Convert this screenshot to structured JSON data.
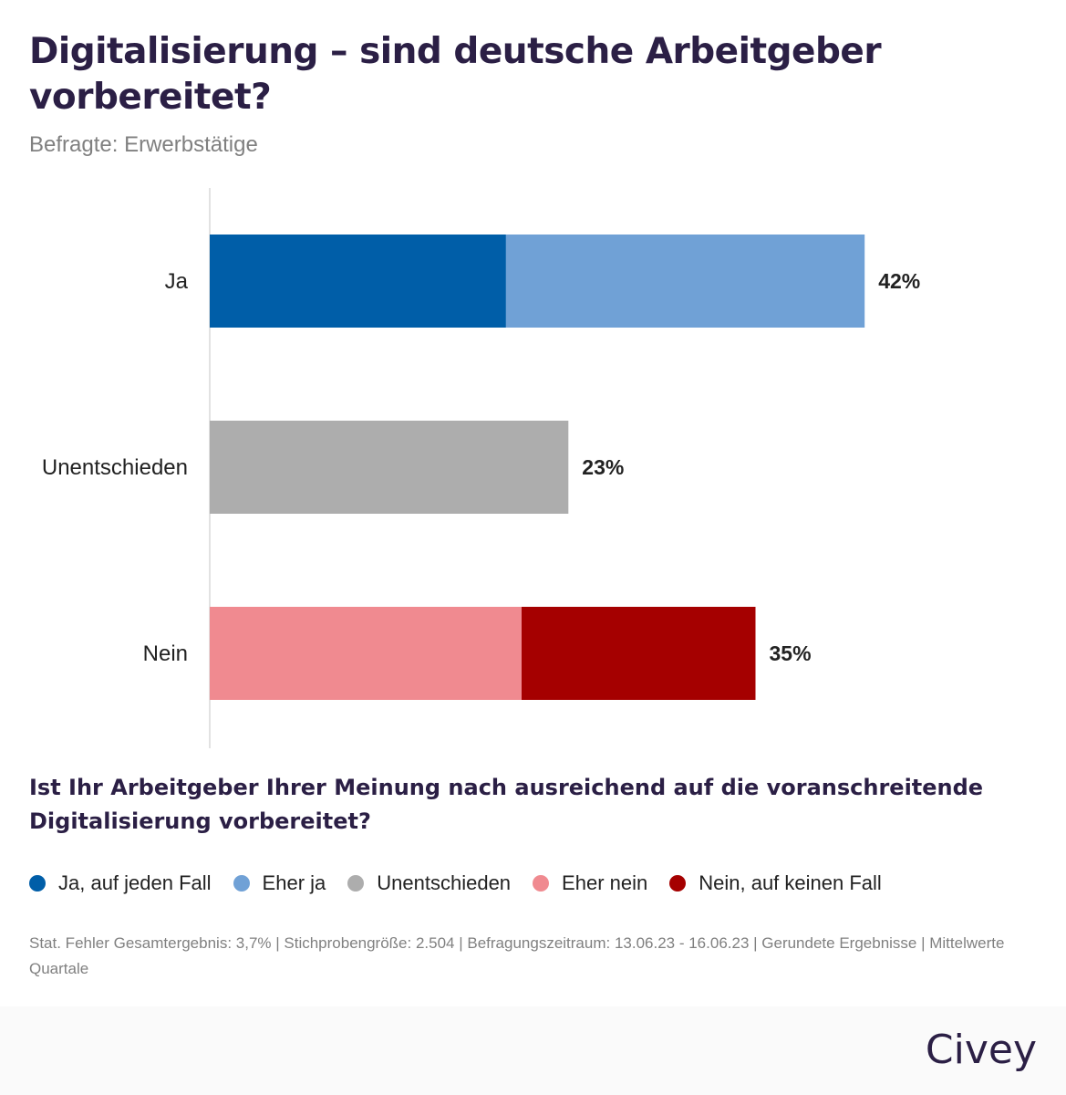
{
  "title": "Digitalisierung – sind deutsche Arbeitgeber vorbereitet?",
  "subtitle": "Befragte: Erwerbstätige",
  "question": "Ist Ihr Arbeitgeber Ihrer Meinung nach ausreichend auf die voranschreitende Digitalisierung vorbereitet?",
  "footnote": "Stat. Fehler Gesamtergebnis: 3,7% | Stichprobengröße: 2.504 | Befragungszeitraum: 13.06.23 - 16.06.23 | Gerundete Ergebnisse | Mittelwerte Quartale",
  "logo": "Civey",
  "chart_data": {
    "type": "bar",
    "orientation": "horizontal",
    "stacked": true,
    "categories": [
      "Ja",
      "Unentschieden",
      "Nein"
    ],
    "totals_labels": [
      "42%",
      "23%",
      "35%"
    ],
    "totals": [
      42,
      23,
      35
    ],
    "xlim": [
      0,
      50
    ],
    "grid": false,
    "legend_position": "bottom",
    "series": [
      {
        "name": "Ja, auf jeden Fall",
        "color": "#005ea8",
        "values": [
          19,
          0,
          0
        ]
      },
      {
        "name": "Eher ja",
        "color": "#70a1d6",
        "values": [
          23,
          0,
          0
        ]
      },
      {
        "name": "Unentschieden",
        "color": "#adadad",
        "values": [
          0,
          23,
          0
        ]
      },
      {
        "name": "Eher nein",
        "color": "#f08a90",
        "values": [
          0,
          0,
          20
        ]
      },
      {
        "name": "Nein, auf keinen Fall",
        "color": "#a50000",
        "values": [
          0,
          0,
          15
        ]
      }
    ]
  }
}
